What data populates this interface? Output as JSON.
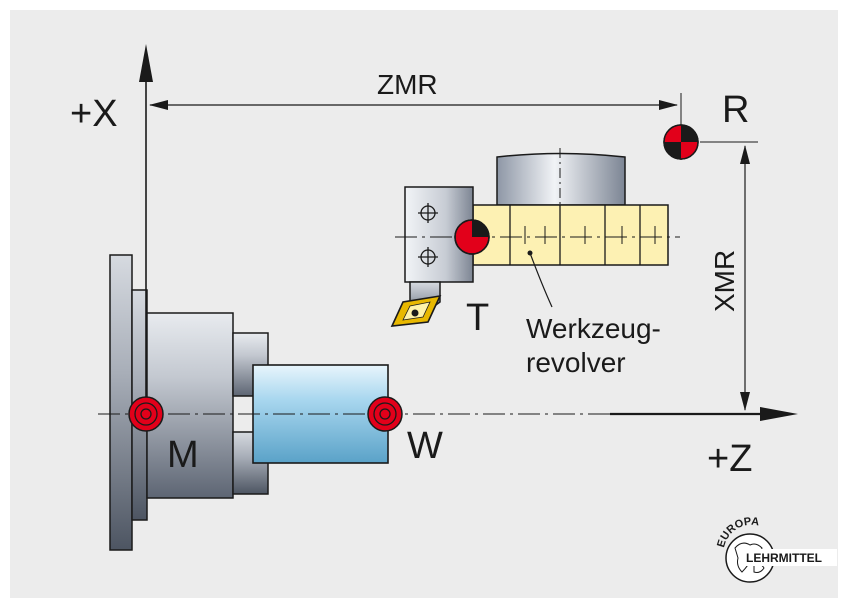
{
  "labels": {
    "axis_x": "+X",
    "axis_z": "+Z",
    "dim_zmr": "ZMR",
    "dim_xmr": "XMR",
    "point_r": "R",
    "point_m": "M",
    "point_w": "W",
    "point_t": "T",
    "turret_line1": "Werkzeug-",
    "turret_line2": "revolver",
    "logo_top": "EUROPA",
    "logo_bottom": "LEHRMITTEL"
  },
  "colors": {
    "background": "#ececec",
    "outer": "#ffffff",
    "marker_red": "#e2001a",
    "marker_black": "#1a1a1a",
    "turret_yellow": "#fdf1b3",
    "workpiece_blue": "#86c2e0",
    "chuck_gray": "#9aa3b0"
  }
}
